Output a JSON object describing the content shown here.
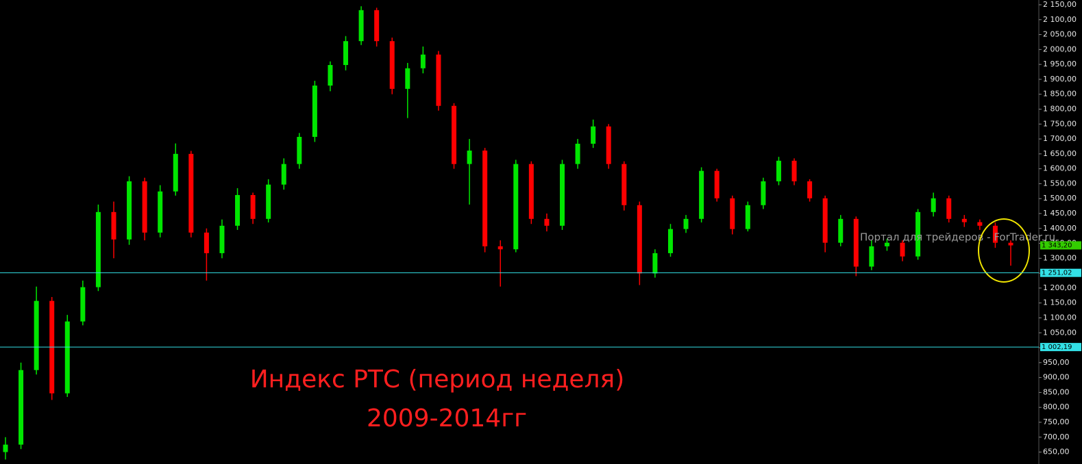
{
  "chart_data": {
    "type": "candlestick",
    "annotations": [
      "Индекс РТС (период неделя)",
      "2009-2014гг"
    ],
    "annotation_color": "#ff1f1f",
    "watermark": "Портал для трейдеров - ForTrader.ru",
    "up_color": "#00e600",
    "down_color": "#ff0000",
    "open": [
      650,
      675,
      925,
      1157,
      847,
      1088,
      1203,
      1455,
      1363,
      1558,
      1386,
      1524,
      1650,
      1386,
      1317,
      1409,
      1512,
      1432,
      1547,
      1616,
      1707,
      1879,
      1948,
      2028,
      2132,
      2028,
      1868,
      1937,
      1983,
      1811,
      1616,
      1661,
      1340,
      1330,
      1616,
      1432,
      1409,
      1616,
      1684,
      1742,
      1616,
      1478,
      1249,
      1317,
      1398,
      1432,
      1593,
      1501,
      1398,
      1478,
      1558,
      1627,
      1558,
      1501,
      1352,
      1432,
      1272,
      1340,
      1352,
      1306,
      1455,
      1501,
      1432,
      1421,
      1409,
      1352
    ],
    "high": [
      700,
      950,
      1205,
      1170,
      1110,
      1225,
      1480,
      1490,
      1575,
      1570,
      1545,
      1685,
      1660,
      1400,
      1430,
      1535,
      1520,
      1565,
      1635,
      1720,
      1895,
      1960,
      2045,
      2145,
      2140,
      2040,
      1955,
      2010,
      1995,
      1820,
      1700,
      1670,
      1360,
      1630,
      1625,
      1450,
      1630,
      1700,
      1765,
      1750,
      1625,
      1490,
      1330,
      1415,
      1445,
      1605,
      1600,
      1510,
      1490,
      1570,
      1640,
      1635,
      1565,
      1510,
      1445,
      1440,
      1360,
      1365,
      1360,
      1465,
      1520,
      1510,
      1445,
      1430,
      1420,
      1360
    ],
    "low": [
      625,
      660,
      910,
      825,
      835,
      1075,
      1190,
      1300,
      1345,
      1360,
      1370,
      1510,
      1370,
      1225,
      1300,
      1395,
      1415,
      1420,
      1530,
      1600,
      1690,
      1860,
      1930,
      2015,
      2010,
      1850,
      1770,
      1920,
      1795,
      1600,
      1480,
      1320,
      1205,
      1320,
      1415,
      1390,
      1395,
      1600,
      1670,
      1600,
      1460,
      1210,
      1235,
      1305,
      1385,
      1420,
      1490,
      1380,
      1390,
      1465,
      1545,
      1545,
      1490,
      1320,
      1340,
      1240,
      1260,
      1325,
      1290,
      1295,
      1440,
      1420,
      1405,
      1395,
      1335,
      1275
    ],
    "close": [
      675,
      925,
      1157,
      847,
      1088,
      1203,
      1455,
      1363,
      1558,
      1386,
      1524,
      1650,
      1386,
      1317,
      1409,
      1512,
      1432,
      1547,
      1616,
      1707,
      1879,
      1948,
      2028,
      2132,
      2028,
      1868,
      1937,
      1983,
      1811,
      1616,
      1661,
      1340,
      1330,
      1616,
      1432,
      1409,
      1616,
      1684,
      1742,
      1616,
      1478,
      1249,
      1317,
      1398,
      1432,
      1593,
      1501,
      1398,
      1478,
      1558,
      1627,
      1558,
      1501,
      1352,
      1432,
      1272,
      1340,
      1352,
      1306,
      1455,
      1501,
      1432,
      1421,
      1409,
      1352,
      1343.2
    ],
    "ylim": [
      610,
      2166
    ],
    "yticks": [
      {
        "value": 650,
        "label": "650,00"
      },
      {
        "value": 700,
        "label": "700,00"
      },
      {
        "value": 750,
        "label": "750,00"
      },
      {
        "value": 800,
        "label": "800,00"
      },
      {
        "value": 850,
        "label": "850,00"
      },
      {
        "value": 900,
        "label": "900,00"
      },
      {
        "value": 950,
        "label": "950,00"
      },
      {
        "value": 1000,
        "label": "1 000,00"
      },
      {
        "value": 1050,
        "label": "1 050,00"
      },
      {
        "value": 1100,
        "label": "1 100,00"
      },
      {
        "value": 1150,
        "label": "1 150,00"
      },
      {
        "value": 1200,
        "label": "1 200,00"
      },
      {
        "value": 1250,
        "label": "1 250,00"
      },
      {
        "value": 1300,
        "label": "1 300,00"
      },
      {
        "value": 1350,
        "label": "1 350,00"
      },
      {
        "value": 1400,
        "label": "1 400,00"
      },
      {
        "value": 1450,
        "label": "1 450,00"
      },
      {
        "value": 1500,
        "label": "1 500,00"
      },
      {
        "value": 1550,
        "label": "1 550,00"
      },
      {
        "value": 1600,
        "label": "1 600,00"
      },
      {
        "value": 1650,
        "label": "1 650,00"
      },
      {
        "value": 1700,
        "label": "1 700,00"
      },
      {
        "value": 1750,
        "label": "1 750,00"
      },
      {
        "value": 1800,
        "label": "1 800,00"
      },
      {
        "value": 1850,
        "label": "1 850,00"
      },
      {
        "value": 1900,
        "label": "1 900,00"
      },
      {
        "value": 1950,
        "label": "1 950,00"
      },
      {
        "value": 2000,
        "label": "2 000,00"
      },
      {
        "value": 2050,
        "label": "2 050,00"
      },
      {
        "value": 2100,
        "label": "2 100,00"
      },
      {
        "value": 2150,
        "label": "2 150,00"
      }
    ],
    "levels": [
      {
        "value": 1251.02,
        "label": "1 251,02",
        "color": "#33e0e6"
      },
      {
        "value": 1002.19,
        "label": "1 002,19",
        "color": "#33e0e6"
      }
    ],
    "current_price": {
      "value": 1343.2,
      "label": "1 343,20",
      "color": "#33cc00"
    }
  }
}
